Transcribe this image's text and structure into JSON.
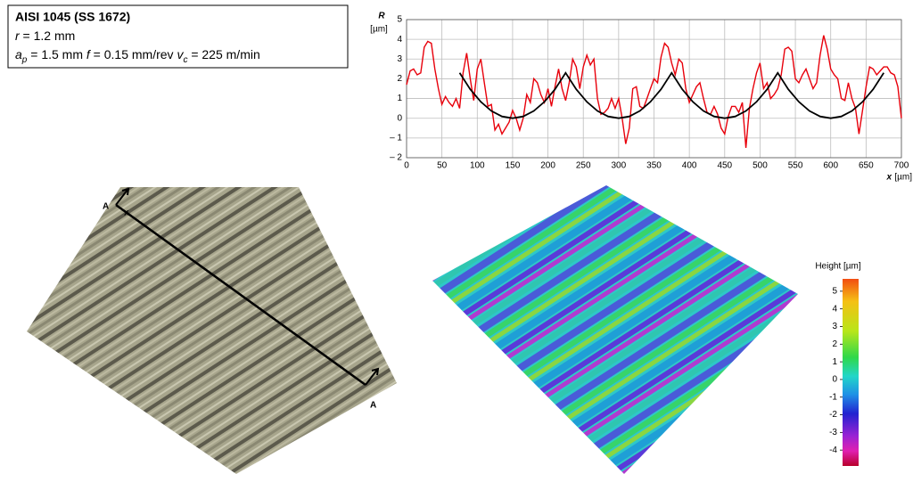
{
  "info_box": {
    "title": "AISI 1045 (SS 1672)",
    "line1": [
      {
        "text": "r",
        "italic": true
      },
      {
        "text": " = 1.2 mm"
      }
    ],
    "line2": [
      {
        "text": "a",
        "italic": true
      },
      {
        "text": "p",
        "italic": true,
        "sub": true
      },
      {
        "text": " = 1.5 mm  "
      },
      {
        "text": "f",
        "italic": true
      },
      {
        "text": " = 0.15 mm/rev  "
      },
      {
        "text": "v",
        "italic": true
      },
      {
        "text": "c",
        "italic": true,
        "sub": true
      },
      {
        "text": " = 225 m/min"
      }
    ]
  },
  "chart_data": {
    "type": "line",
    "y_label": "R",
    "y_unit": "[µm]",
    "x_label": "x",
    "x_unit": "[µm]",
    "xlim": [
      0,
      700
    ],
    "ylim": [
      -2,
      5
    ],
    "xticks": [
      0,
      50,
      100,
      150,
      200,
      250,
      300,
      350,
      400,
      450,
      500,
      550,
      600,
      650,
      700
    ],
    "yticks": [
      {
        "value": -2,
        "label": "– 2"
      },
      {
        "value": -1,
        "label": "– 1"
      },
      0,
      1,
      2,
      3,
      4,
      5
    ],
    "grid": true,
    "series": [
      {
        "color": "#e8000b",
        "x": [
          0,
          5,
          10,
          15,
          20,
          25,
          30,
          35,
          40,
          45,
          50,
          55,
          60,
          65,
          70,
          75,
          80,
          85,
          90,
          95,
          100,
          105,
          110,
          115,
          120,
          125,
          130,
          135,
          140,
          145,
          150,
          155,
          160,
          165,
          170,
          175,
          180,
          185,
          190,
          195,
          200,
          205,
          210,
          215,
          220,
          225,
          230,
          235,
          240,
          245,
          250,
          255,
          260,
          265,
          270,
          275,
          280,
          285,
          290,
          295,
          300,
          305,
          310,
          315,
          320,
          325,
          330,
          335,
          340,
          345,
          350,
          355,
          360,
          365,
          370,
          375,
          380,
          385,
          390,
          395,
          400,
          405,
          410,
          415,
          420,
          425,
          430,
          435,
          440,
          445,
          450,
          455,
          460,
          465,
          470,
          475,
          480,
          485,
          490,
          495,
          500,
          505,
          510,
          515,
          520,
          525,
          530,
          535,
          540,
          545,
          550,
          555,
          560,
          565,
          570,
          575,
          580,
          585,
          590,
          595,
          600,
          605,
          610,
          615,
          620,
          625,
          630,
          635,
          640,
          645,
          650,
          655,
          660,
          665,
          670,
          675,
          680,
          685,
          690,
          695,
          700
        ],
        "values": [
          1.7,
          2.4,
          2.5,
          2.2,
          2.3,
          3.6,
          3.9,
          3.8,
          2.5,
          1.5,
          0.7,
          1.1,
          0.8,
          0.6,
          1.0,
          0.5,
          2.3,
          3.3,
          2.0,
          0.9,
          2.5,
          3.0,
          1.8,
          0.6,
          0.7,
          -0.6,
          -0.3,
          -0.8,
          -0.5,
          -0.2,
          0.4,
          0.0,
          -0.6,
          0.0,
          1.2,
          0.8,
          2.0,
          1.8,
          1.2,
          0.8,
          1.5,
          0.6,
          1.6,
          2.5,
          1.5,
          0.9,
          1.8,
          3.0,
          2.6,
          1.5,
          2.6,
          3.2,
          2.7,
          3.0,
          1.0,
          0.2,
          0.3,
          0.5,
          1.0,
          0.5,
          1.0,
          0.0,
          -1.3,
          -0.5,
          1.5,
          1.6,
          0.6,
          0.5,
          1.0,
          1.5,
          2.0,
          1.8,
          3.1,
          3.8,
          3.6,
          2.8,
          2.2,
          3.0,
          2.8,
          1.5,
          0.8,
          1.2,
          1.6,
          1.8,
          1.0,
          0.3,
          0.2,
          0.6,
          0.2,
          -0.5,
          -0.8,
          0.1,
          0.6,
          0.6,
          0.3,
          0.8,
          -1.5,
          0.5,
          1.5,
          2.3,
          2.8,
          1.5,
          1.8,
          1.0,
          1.2,
          1.5,
          2.2,
          3.5,
          3.6,
          3.4,
          2.0,
          1.8,
          2.2,
          2.5,
          2.0,
          1.5,
          1.8,
          3.2,
          4.2,
          3.5,
          2.5,
          2.2,
          2.0,
          1.0,
          0.9,
          1.8,
          1.0,
          0.5,
          -0.8,
          0.4,
          1.6,
          2.6,
          2.5,
          2.2,
          2.4,
          2.6,
          2.6,
          2.3,
          2.2,
          1.6,
          0.0
        ]
      },
      {
        "color": "#000000",
        "x": [
          75,
          90,
          105,
          120,
          135,
          150,
          165,
          180,
          195,
          210,
          225,
          240,
          255,
          270,
          285,
          300,
          315,
          330,
          345,
          360,
          375,
          390,
          405,
          420,
          435,
          450,
          465,
          480,
          495,
          510,
          525,
          540,
          555,
          570,
          585,
          600,
          615,
          630,
          645,
          660,
          675
        ],
        "values": [
          2.3,
          1.47,
          0.83,
          0.37,
          0.09,
          0,
          0.09,
          0.37,
          0.83,
          1.47,
          2.3,
          1.47,
          0.83,
          0.37,
          0.09,
          0,
          0.09,
          0.37,
          0.83,
          1.47,
          2.3,
          1.47,
          0.83,
          0.37,
          0.09,
          0,
          0.09,
          0.37,
          0.83,
          1.47,
          2.3,
          1.47,
          0.83,
          0.37,
          0.09,
          0,
          0.09,
          0.37,
          0.83,
          1.47,
          2.3
        ]
      }
    ]
  },
  "photo_labels": {
    "section_start": "A",
    "axis": "x",
    "section_end": "A"
  },
  "colorbar": {
    "label": "Height [µm]",
    "clim": [
      -4.9,
      5.7
    ],
    "ticks": [
      5,
      4,
      3,
      2,
      1,
      0,
      -1,
      -2,
      -3,
      -4
    ]
  }
}
